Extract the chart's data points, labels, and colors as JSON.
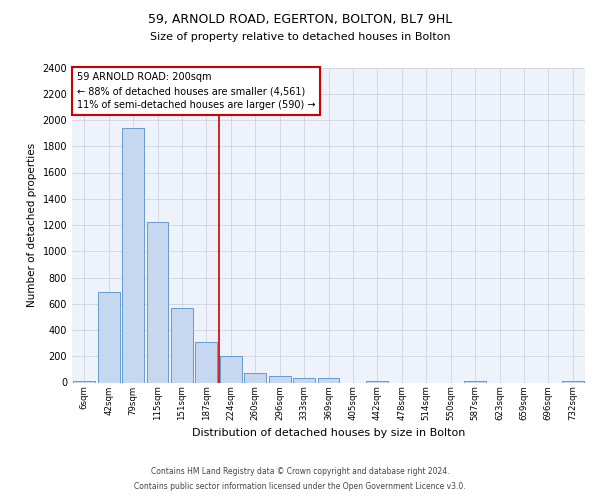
{
  "title_line1": "59, ARNOLD ROAD, EGERTON, BOLTON, BL7 9HL",
  "title_line2": "Size of property relative to detached houses in Bolton",
  "xlabel": "Distribution of detached houses by size in Bolton",
  "ylabel": "Number of detached properties",
  "bin_labels": [
    "6sqm",
    "42sqm",
    "79sqm",
    "115sqm",
    "151sqm",
    "187sqm",
    "224sqm",
    "260sqm",
    "296sqm",
    "333sqm",
    "369sqm",
    "405sqm",
    "442sqm",
    "478sqm",
    "514sqm",
    "550sqm",
    "587sqm",
    "623sqm",
    "659sqm",
    "696sqm",
    "732sqm"
  ],
  "bin_values": [
    15,
    690,
    1940,
    1220,
    570,
    305,
    200,
    75,
    50,
    35,
    35,
    0,
    15,
    0,
    0,
    0,
    10,
    0,
    0,
    0,
    10
  ],
  "bar_color": "#c5d8f0",
  "bar_edge_color": "#5590c8",
  "red_line_x": 5.5,
  "annotation_text": "59 ARNOLD ROAD: 200sqm\n← 88% of detached houses are smaller (4,561)\n11% of semi-detached houses are larger (590) →",
  "annotation_box_color": "white",
  "annotation_box_edge": "#cc0000",
  "ylim": [
    0,
    2400
  ],
  "yticks": [
    0,
    200,
    400,
    600,
    800,
    1000,
    1200,
    1400,
    1600,
    1800,
    2000,
    2200,
    2400
  ],
  "footer_line1": "Contains HM Land Registry data © Crown copyright and database right 2024.",
  "footer_line2": "Contains public sector information licensed under the Open Government Licence v3.0.",
  "background_color": "#edf2fb",
  "grid_color": "#c8cdd8"
}
